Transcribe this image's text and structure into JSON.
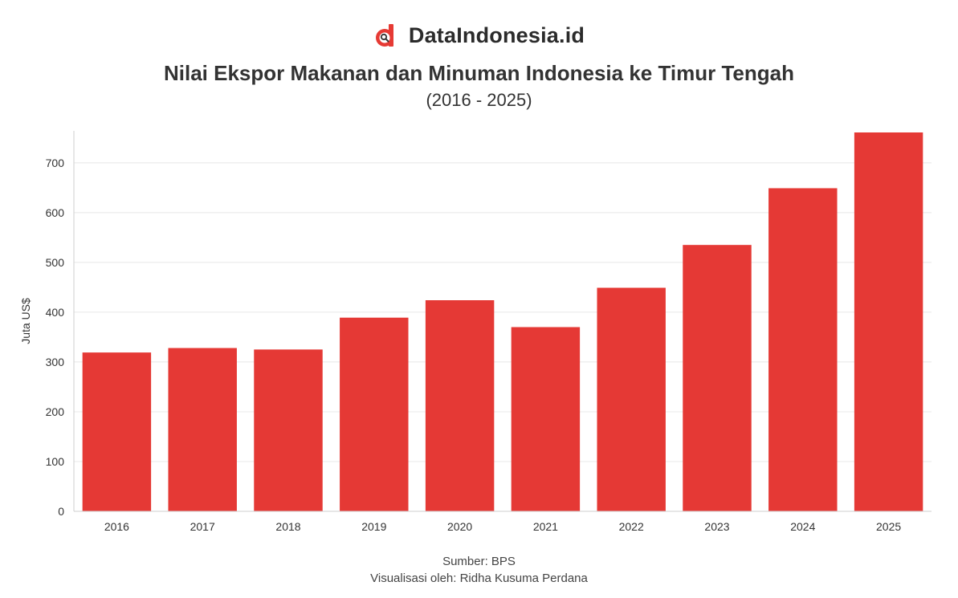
{
  "brand": {
    "name": "DataIndonesia.id",
    "logo_icon": "dataindonesia-logo-icon",
    "color": "#e63a34"
  },
  "header": {
    "title": "Nilai Ekspor Makanan dan Minuman Indonesia ke Timur Tengah",
    "subtitle": "(2016 - 2025)"
  },
  "footer": {
    "source": "Sumber: BPS",
    "credit": "Visualisasi oleh: Ridha Kusuma Perdana"
  },
  "chart_data": {
    "type": "bar",
    "categories": [
      "2016",
      "2017",
      "2018",
      "2019",
      "2020",
      "2021",
      "2022",
      "2023",
      "2024",
      "2025"
    ],
    "values": [
      319,
      328,
      325,
      389,
      424,
      370,
      449,
      535,
      649,
      761
    ],
    "xlabel": "",
    "ylabel": "Juta US$",
    "yticks": [
      0,
      100,
      200,
      300,
      400,
      500,
      600,
      700
    ],
    "ylim": [
      0,
      761
    ],
    "grid": true,
    "bar_color": "#e53935"
  }
}
